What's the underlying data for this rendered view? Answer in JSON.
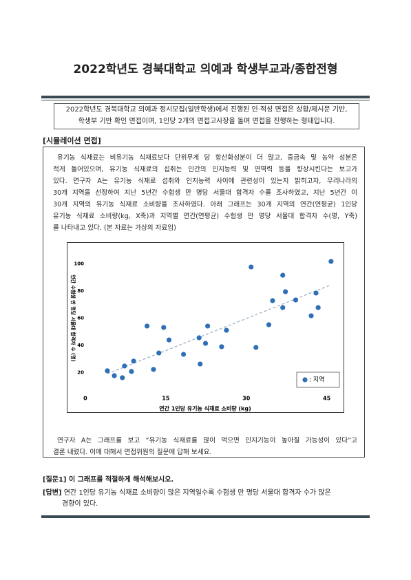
{
  "header": {
    "title": "2022학년도 경북대학교 의예과 학생부교과/종합전형"
  },
  "intro": [
    "2022학년도 경북대학교 의예과 정시모집(일반학생)에서 진행된 인·적성 면접은 상황/제시문 기반,",
    "학생부 기반 확인 면접이며, 1인당 2개의 면접고사장을 돌며 면접을 진행하는 형태입니다."
  ],
  "section_label": "[시뮬레이션 면접]",
  "passage": [
    "유기농 식재료는 비유기농 식재료보다 단위무게 당 항산화성분이 더 많고, 중금속 및 농약 성분은",
    "적게 들어있으며, 유기농 식재료의 섭취는 인간의 인지능력 및 면역력 등을 향상시킨다는 보고가",
    "있다. 연구자 A는 유기농 식재료 섭취와 인지능력 사이에 관련성이 있는지 밝히고자, 우리나라의",
    "30개 지역을 선정하여 지난 5년간 수험생 만 명당 서울대 합격자 수를 조사하였고, 지난 5년간 이",
    "30개 지역의 유기농 식재료 소비량을 조사하였다. 아래 그래프는 30개 지역의 연간(연평균) 1인당",
    "유기농 식재료 소비량(kg, X축)과 지역별 연간(연평균) 수험생 만 명당 서울대 합격자 수(명, Y축)",
    "를 나타내고 있다. (본 자료는 가상의 자료임)"
  ],
  "chart_data": {
    "type": "scatter",
    "x_label": "연간 1인당 유기농 식재료 소비량 (kg)",
    "y_label": "연간 수험생 만 명당 서울대 합격자 수 (명)",
    "xlim": [
      -3,
      48
    ],
    "ylim": [
      5,
      110
    ],
    "xticks": [
      0,
      15,
      30,
      45
    ],
    "yticks": [
      20,
      40,
      60,
      80,
      100
    ],
    "grid": false,
    "trendline": true,
    "legend": "bottom-right",
    "series": [
      {
        "name": ": 지역",
        "color": "#2f6fb5",
        "x": [
          4.1,
          5.4,
          6.9,
          7.3,
          8.6,
          9.0,
          11.5,
          12.7,
          13.7,
          14.6,
          15.6,
          18.3,
          21.2,
          21.4,
          22.4,
          22.8,
          25.4,
          26.3,
          30.9,
          31.8,
          34.2,
          34.9,
          36.8,
          36.8,
          37.3,
          39.2,
          42.1,
          43.0,
          43.4,
          45.8
        ],
        "values": [
          21.3,
          17.7,
          16.2,
          24.8,
          20.8,
          28.4,
          54.2,
          22.3,
          34.4,
          53.2,
          44.0,
          33.4,
          45.6,
          26.3,
          41.5,
          54.2,
          39.0,
          51.1,
          97.7,
          38.5,
          55.2,
          72.9,
          91.6,
          67.8,
          79.5,
          73.4,
          61.8,
          78.5,
          67.8,
          101.8
        ]
      }
    ]
  },
  "conclusion": [
    "연구자 A는 그래프를 보고 “유기농 식재료를 많이 먹으면 인지기능이 높아질 가능성이 있다”고",
    "결론 내렸다. 이에 대해서 면접위원의 질문에 답해 보세요."
  ],
  "question": {
    "label": "[질문1]",
    "text": "이 그래프를 적절하게 해석해보시오."
  },
  "answer": {
    "label": "[답변]",
    "lines": [
      "연간 1인당 유기농 식재료 소비량이 많은 지역일수록 수험생 만 명당 서울대 합격자 수가 많은",
      "경향이 있다."
    ]
  }
}
